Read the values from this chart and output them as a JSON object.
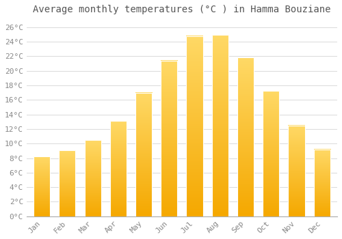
{
  "title": "Average monthly temperatures (°C ) in Hamma Bouziane",
  "months": [
    "Jan",
    "Feb",
    "Mar",
    "Apr",
    "May",
    "Jun",
    "Jul",
    "Aug",
    "Sep",
    "Oct",
    "Nov",
    "Dec"
  ],
  "values": [
    8.2,
    9.1,
    10.5,
    13.1,
    17.0,
    21.4,
    24.8,
    24.9,
    21.8,
    17.2,
    12.5,
    9.2
  ],
  "background_color": "#FFFFFF",
  "grid_color": "#DDDDDD",
  "ylim": [
    0,
    27
  ],
  "yticks": [
    0,
    2,
    4,
    6,
    8,
    10,
    12,
    14,
    16,
    18,
    20,
    22,
    24,
    26
  ],
  "title_fontsize": 10,
  "tick_fontsize": 8,
  "bar_color_bottom": "#F5A800",
  "bar_color_top": "#FFD966",
  "bar_edge_color": "#FFFFFF",
  "tick_color": "#888888",
  "title_color": "#555555",
  "spine_color": "#AAAAAA"
}
